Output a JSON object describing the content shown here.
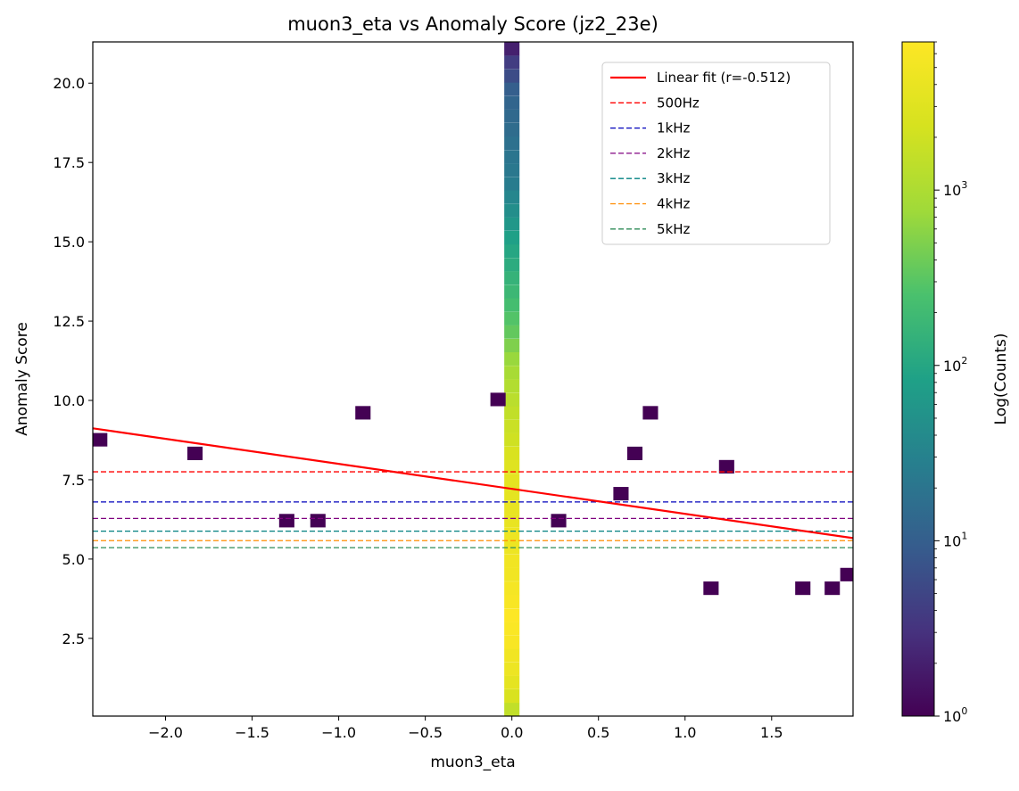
{
  "chart_data": {
    "type": "heatmap",
    "title": "muon3_eta vs Anomaly Score (jz2_23e)",
    "xlabel": "muon3_eta",
    "ylabel": "Anomaly Score",
    "xlim": [
      -2.42,
      1.97
    ],
    "ylim": [
      0.05,
      21.3
    ],
    "x_ticks": [
      -2.0,
      -1.5,
      -1.0,
      -0.5,
      0.0,
      0.5,
      1.0,
      1.5
    ],
    "x_tick_labels": [
      "−2.0",
      "−1.5",
      "−1.0",
      "−0.5",
      "0.0",
      "0.5",
      "1.0",
      "1.5"
    ],
    "y_ticks": [
      2.5,
      5.0,
      7.5,
      10.0,
      12.5,
      15.0,
      17.5,
      20.0
    ],
    "y_tick_labels": [
      "2.5",
      "5.0",
      "7.5",
      "10.0",
      "12.5",
      "15.0",
      "17.5",
      "20.0"
    ],
    "grid": false,
    "colormap": "viridis",
    "colorbar": {
      "label": "Log(Counts)",
      "scale": "log",
      "range": [
        1,
        7000
      ],
      "ticks": [
        {
          "value": 1,
          "base": "10",
          "exp": "0"
        },
        {
          "value": 10,
          "base": "10",
          "exp": "1"
        },
        {
          "value": 100,
          "base": "10",
          "exp": "2"
        },
        {
          "value": 1000,
          "base": "10",
          "exp": "3"
        }
      ]
    },
    "bin_width": {
      "x": 0.088,
      "y": 0.425
    },
    "central_column": {
      "x": 0.0,
      "cells": [
        {
          "y": 0.26,
          "count": 1500
        },
        {
          "y": 0.68,
          "count": 2500
        },
        {
          "y": 1.11,
          "count": 3500
        },
        {
          "y": 1.53,
          "count": 4500
        },
        {
          "y": 1.96,
          "count": 5000
        },
        {
          "y": 2.38,
          "count": 6000
        },
        {
          "y": 2.81,
          "count": 6500
        },
        {
          "y": 3.23,
          "count": 7000
        },
        {
          "y": 3.66,
          "count": 6000
        },
        {
          "y": 4.08,
          "count": 5500
        },
        {
          "y": 4.51,
          "count": 5000
        },
        {
          "y": 4.93,
          "count": 5000
        },
        {
          "y": 5.36,
          "count": 4500
        },
        {
          "y": 5.78,
          "count": 4500
        },
        {
          "y": 6.21,
          "count": 4000
        },
        {
          "y": 6.63,
          "count": 4000
        },
        {
          "y": 7.06,
          "count": 3500
        },
        {
          "y": 7.48,
          "count": 3500
        },
        {
          "y": 7.91,
          "count": 3000
        },
        {
          "y": 8.33,
          "count": 2500
        },
        {
          "y": 8.76,
          "count": 2000
        },
        {
          "y": 9.18,
          "count": 1800
        },
        {
          "y": 9.61,
          "count": 1500
        },
        {
          "y": 10.03,
          "count": 1300
        },
        {
          "y": 10.46,
          "count": 1100
        },
        {
          "y": 10.88,
          "count": 900
        },
        {
          "y": 11.31,
          "count": 700
        },
        {
          "y": 11.73,
          "count": 500
        },
        {
          "y": 12.16,
          "count": 350
        },
        {
          "y": 12.58,
          "count": 280
        },
        {
          "y": 13.01,
          "count": 220
        },
        {
          "y": 13.43,
          "count": 180
        },
        {
          "y": 13.86,
          "count": 150
        },
        {
          "y": 14.28,
          "count": 120
        },
        {
          "y": 14.71,
          "count": 100
        },
        {
          "y": 15.13,
          "count": 80
        },
        {
          "y": 15.56,
          "count": 60
        },
        {
          "y": 15.98,
          "count": 45
        },
        {
          "y": 16.41,
          "count": 35
        },
        {
          "y": 16.83,
          "count": 25
        },
        {
          "y": 17.26,
          "count": 22
        },
        {
          "y": 17.68,
          "count": 20
        },
        {
          "y": 18.11,
          "count": 18
        },
        {
          "y": 18.53,
          "count": 15
        },
        {
          "y": 18.96,
          "count": 14
        },
        {
          "y": 19.38,
          "count": 12
        },
        {
          "y": 19.81,
          "count": 10
        },
        {
          "y": 20.23,
          "count": 6
        },
        {
          "y": 20.66,
          "count": 4
        },
        {
          "y": 21.08,
          "count": 2
        }
      ]
    },
    "sparse_cells": [
      {
        "x": -2.38,
        "y": 8.76,
        "count": 1
      },
      {
        "x": -1.83,
        "y": 8.33,
        "count": 1
      },
      {
        "x": -1.3,
        "y": 6.21,
        "count": 1
      },
      {
        "x": -1.12,
        "y": 6.21,
        "count": 1
      },
      {
        "x": -0.86,
        "y": 9.61,
        "count": 1
      },
      {
        "x": -0.08,
        "y": 10.03,
        "count": 1
      },
      {
        "x": 0.27,
        "y": 6.21,
        "count": 1
      },
      {
        "x": 0.63,
        "y": 7.06,
        "count": 1
      },
      {
        "x": 0.71,
        "y": 8.33,
        "count": 1
      },
      {
        "x": 0.8,
        "y": 9.61,
        "count": 1
      },
      {
        "x": 1.15,
        "y": 4.08,
        "count": 1
      },
      {
        "x": 1.24,
        "y": 7.91,
        "count": 1
      },
      {
        "x": 1.68,
        "y": 4.08,
        "count": 1
      },
      {
        "x": 1.85,
        "y": 4.08,
        "count": 1
      },
      {
        "x": 1.94,
        "y": 4.51,
        "count": 1
      }
    ],
    "fit_line": {
      "label": "Linear fit (r=-0.512)",
      "color": "#ff0000",
      "x": [
        -2.42,
        1.97
      ],
      "y": [
        9.12,
        5.66
      ]
    },
    "thresholds": [
      {
        "label": "500Hz",
        "y": 7.75,
        "color": "#ff0000"
      },
      {
        "label": "1kHz",
        "y": 6.8,
        "color": "#0000bb"
      },
      {
        "label": "2kHz",
        "y": 6.28,
        "color": "#800080"
      },
      {
        "label": "3kHz",
        "y": 5.88,
        "color": "#008080"
      },
      {
        "label": "4kHz",
        "y": 5.58,
        "color": "#ff8c00"
      },
      {
        "label": "5kHz",
        "y": 5.36,
        "color": "#2e8b57"
      }
    ],
    "legend": {
      "position": "top-right"
    }
  }
}
